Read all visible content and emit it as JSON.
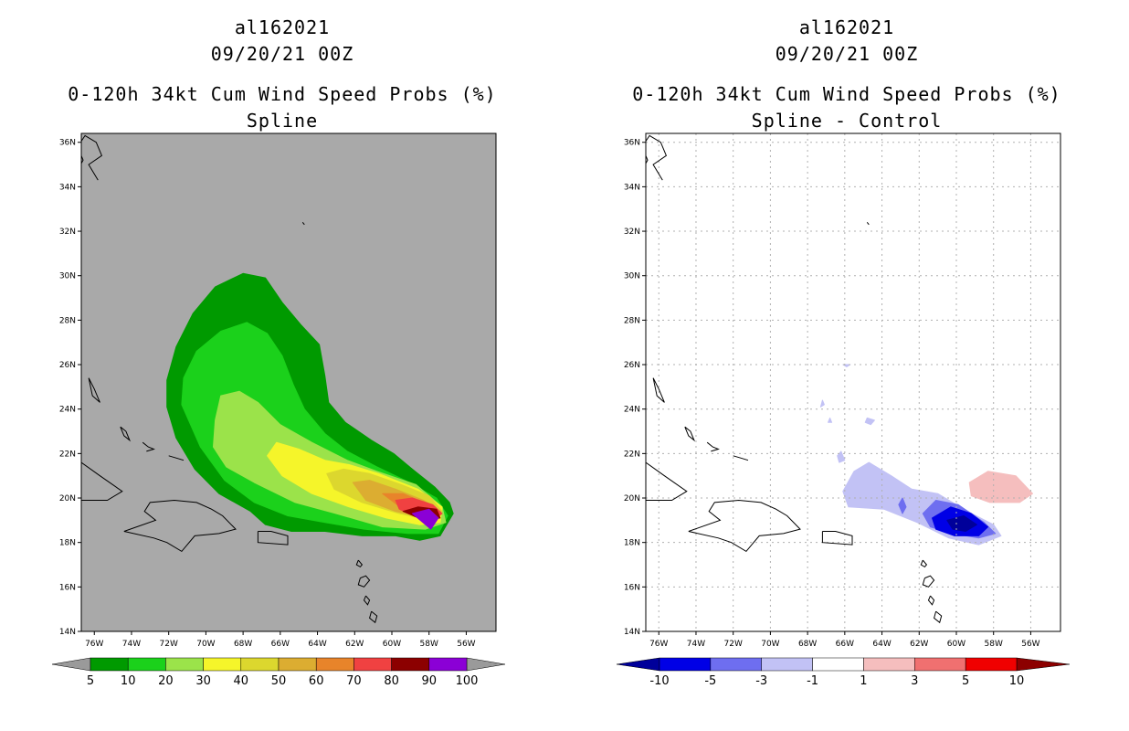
{
  "chart_data": [
    {
      "type": "heatmap",
      "id": "left",
      "title_lines": [
        "al162021",
        "09/20/21 00Z",
        "0-120h 34kt Cum Wind Speed Probs (%)",
        "Spline"
      ],
      "background": "#a9a9a9",
      "grid": false,
      "x_ticks": [
        "76W",
        "74W",
        "72W",
        "70W",
        "68W",
        "66W",
        "64W",
        "62W",
        "60W",
        "58W",
        "56W"
      ],
      "x_tick_values": [
        -76,
        -74,
        -72,
        -70,
        -68,
        -66,
        -64,
        -62,
        -60,
        -58,
        -56
      ],
      "y_ticks": [
        "14N",
        "16N",
        "18N",
        "20N",
        "22N",
        "24N",
        "26N",
        "28N",
        "30N",
        "32N",
        "34N",
        "36N"
      ],
      "y_tick_values": [
        14,
        16,
        18,
        20,
        22,
        24,
        26,
        28,
        30,
        32,
        34,
        36
      ],
      "xlim": [
        -76.7,
        -54.4
      ],
      "ylim": [
        14,
        36.4
      ],
      "colorbar": {
        "labels": [
          "5",
          "10",
          "20",
          "30",
          "40",
          "50",
          "60",
          "70",
          "80",
          "90",
          "100"
        ],
        "colors": [
          "#009a00",
          "#1bd11b",
          "#9be34a",
          "#f5f52a",
          "#dcd72e",
          "#dcad31",
          "#e8842a",
          "#f04141",
          "#8c0000",
          "#8b00d6"
        ],
        "left_arrow": "#9a9a9a",
        "right_arrow": "#9a9a9a"
      },
      "contours": [
        {
          "level": "5-10",
          "color": "#009a00",
          "points": [
            [
              -72.1,
              24.1
            ],
            [
              -72.1,
              25.3
            ],
            [
              -71.6,
              26.8
            ],
            [
              -70.7,
              28.3
            ],
            [
              -69.5,
              29.5
            ],
            [
              -68.0,
              30.1
            ],
            [
              -66.8,
              29.9
            ],
            [
              -65.9,
              28.8
            ],
            [
              -64.9,
              27.8
            ],
            [
              -63.9,
              26.9
            ],
            [
              -63.6,
              25.5
            ],
            [
              -63.4,
              24.3
            ],
            [
              -62.5,
              23.4
            ],
            [
              -61.1,
              22.6
            ],
            [
              -59.9,
              22.0
            ],
            [
              -58.9,
              21.3
            ],
            [
              -57.7,
              20.5
            ],
            [
              -56.9,
              19.8
            ],
            [
              -56.7,
              19.3
            ],
            [
              -57.4,
              18.3
            ],
            [
              -58.5,
              18.1
            ],
            [
              -59.8,
              18.3
            ],
            [
              -61.6,
              18.3
            ],
            [
              -63.6,
              18.5
            ],
            [
              -65.4,
              18.5
            ],
            [
              -66.8,
              18.8
            ],
            [
              -67.6,
              19.4
            ],
            [
              -69.3,
              20.2
            ],
            [
              -70.6,
              21.3
            ],
            [
              -71.6,
              22.7
            ]
          ]
        },
        {
          "level": "10-20",
          "color": "#1bd11b",
          "points": [
            [
              -71.3,
              24.2
            ],
            [
              -71.2,
              25.4
            ],
            [
              -70.5,
              26.6
            ],
            [
              -69.2,
              27.5
            ],
            [
              -67.8,
              27.9
            ],
            [
              -66.7,
              27.4
            ],
            [
              -65.9,
              26.4
            ],
            [
              -65.3,
              25.1
            ],
            [
              -64.7,
              24.0
            ],
            [
              -63.6,
              22.9
            ],
            [
              -62.4,
              22.1
            ],
            [
              -60.8,
              21.4
            ],
            [
              -59.3,
              20.8
            ],
            [
              -57.6,
              20.0
            ],
            [
              -57.0,
              19.2
            ],
            [
              -57.5,
              18.4
            ],
            [
              -59.1,
              18.4
            ],
            [
              -61.5,
              18.6
            ],
            [
              -63.6,
              18.9
            ],
            [
              -65.6,
              19.2
            ],
            [
              -67.4,
              19.8
            ],
            [
              -69.0,
              20.8
            ],
            [
              -70.3,
              22.3
            ]
          ]
        },
        {
          "level": "20-30",
          "color": "#9be34a",
          "points": [
            [
              -69.6,
              22.3
            ],
            [
              -69.5,
              23.5
            ],
            [
              -69.2,
              24.6
            ],
            [
              -68.2,
              24.8
            ],
            [
              -67.2,
              24.3
            ],
            [
              -66.0,
              23.3
            ],
            [
              -64.3,
              22.5
            ],
            [
              -62.4,
              21.7
            ],
            [
              -60.8,
              21.2
            ],
            [
              -58.7,
              20.6
            ],
            [
              -57.3,
              19.6
            ],
            [
              -57.1,
              18.9
            ],
            [
              -58.2,
              18.6
            ],
            [
              -60.5,
              18.7
            ],
            [
              -63.0,
              19.3
            ],
            [
              -65.2,
              19.8
            ],
            [
              -67.4,
              20.7
            ],
            [
              -68.9,
              21.4
            ]
          ]
        },
        {
          "level": "30-40",
          "color": "#f5f52a",
          "points": [
            [
              -66.7,
              21.9
            ],
            [
              -66.2,
              22.5
            ],
            [
              -65.0,
              22.2
            ],
            [
              -63.6,
              21.7
            ],
            [
              -62.3,
              21.5
            ],
            [
              -60.7,
              21.1
            ],
            [
              -58.6,
              20.4
            ],
            [
              -57.3,
              19.6
            ],
            [
              -57.4,
              18.9
            ],
            [
              -58.5,
              18.8
            ],
            [
              -60.3,
              19.1
            ],
            [
              -62.3,
              19.6
            ],
            [
              -64.3,
              20.2
            ],
            [
              -65.9,
              21.0
            ]
          ]
        },
        {
          "level": "40-50",
          "color": "#dcd72e",
          "points": [
            [
              -63.5,
              21.1
            ],
            [
              -62.6,
              21.3
            ],
            [
              -61.2,
              21.1
            ],
            [
              -59.5,
              20.6
            ],
            [
              -58.0,
              20.1
            ],
            [
              -57.3,
              19.4
            ],
            [
              -57.9,
              19.0
            ],
            [
              -59.6,
              19.3
            ],
            [
              -61.6,
              19.8
            ],
            [
              -63.1,
              20.4
            ]
          ]
        },
        {
          "level": "50-60",
          "color": "#dcad31",
          "points": [
            [
              -62.1,
              20.7
            ],
            [
              -61.2,
              20.8
            ],
            [
              -59.8,
              20.4
            ],
            [
              -58.3,
              19.9
            ],
            [
              -57.4,
              19.4
            ],
            [
              -58.1,
              19.1
            ],
            [
              -59.8,
              19.4
            ],
            [
              -61.4,
              19.9
            ]
          ]
        },
        {
          "level": "60-70",
          "color": "#e8842a",
          "points": [
            [
              -60.5,
              20.2
            ],
            [
              -59.4,
              20.2
            ],
            [
              -58.3,
              19.8
            ],
            [
              -57.4,
              19.4
            ],
            [
              -58.0,
              19.2
            ],
            [
              -59.4,
              19.5
            ]
          ]
        },
        {
          "level": "70-80",
          "color": "#f04141",
          "points": [
            [
              -59.8,
              19.9
            ],
            [
              -58.9,
              20.0
            ],
            [
              -57.8,
              19.7
            ],
            [
              -57.3,
              19.3
            ],
            [
              -57.9,
              18.9
            ],
            [
              -58.8,
              19.2
            ],
            [
              -59.6,
              19.5
            ]
          ]
        },
        {
          "level": "80-90",
          "color": "#8c0000",
          "points": [
            [
              -59.4,
              19.4
            ],
            [
              -58.6,
              19.6
            ],
            [
              -57.6,
              19.5
            ],
            [
              -57.4,
              19.1
            ],
            [
              -58.3,
              19.0
            ]
          ]
        },
        {
          "level": "90-100",
          "color": "#8b00d6",
          "points": [
            [
              -58.9,
              19.3
            ],
            [
              -58.0,
              19.5
            ],
            [
              -57.5,
              19.1
            ],
            [
              -57.9,
              18.6
            ]
          ]
        }
      ]
    },
    {
      "type": "heatmap",
      "id": "right",
      "title_lines": [
        "al162021",
        "09/20/21 00Z",
        "0-120h 34kt Cum Wind Speed Probs (%)",
        "Spline - Control"
      ],
      "background": "#ffffff",
      "grid": true,
      "x_ticks": [
        "76W",
        "74W",
        "72W",
        "70W",
        "68W",
        "66W",
        "64W",
        "62W",
        "60W",
        "58W",
        "56W"
      ],
      "x_tick_values": [
        -76,
        -74,
        -72,
        -70,
        -68,
        -66,
        -64,
        -62,
        -60,
        -58,
        -56
      ],
      "y_ticks": [
        "14N",
        "16N",
        "18N",
        "20N",
        "22N",
        "24N",
        "26N",
        "28N",
        "30N",
        "32N",
        "34N",
        "36N"
      ],
      "y_tick_values": [
        14,
        16,
        18,
        20,
        22,
        24,
        26,
        28,
        30,
        32,
        34,
        36
      ],
      "xlim": [
        -76.7,
        -54.4
      ],
      "ylim": [
        14,
        36.4
      ],
      "colorbar": {
        "labels": [
          "-10",
          "-5",
          "-3",
          "-1",
          "1",
          "3",
          "5",
          "10"
        ],
        "colors": [
          "#0000e6",
          "#6e6ef0",
          "#c2c2f5",
          "#ffffff",
          "#f5bebe",
          "#f07070",
          "#f00000"
        ],
        "left_arrow": "#00009a",
        "right_arrow": "#8c0000"
      },
      "contours": [
        {
          "level": "-3 to -1",
          "color": "#c2c2f5",
          "points": [
            [
              -65.5,
              21.2
            ],
            [
              -64.7,
              21.6
            ],
            [
              -63.5,
              21.0
            ],
            [
              -62.4,
              20.4
            ],
            [
              -61.0,
              20.2
            ],
            [
              -59.4,
              19.4
            ],
            [
              -58.0,
              18.8
            ],
            [
              -57.6,
              18.3
            ],
            [
              -58.8,
              17.9
            ],
            [
              -60.4,
              18.2
            ],
            [
              -62.1,
              18.9
            ],
            [
              -63.9,
              19.5
            ],
            [
              -65.8,
              19.6
            ],
            [
              -66.1,
              20.3
            ]
          ]
        },
        {
          "level": "-3 to -1",
          "color": "#c2c2f5",
          "points": [
            [
              -66.2,
              22.1
            ],
            [
              -66.0,
              21.7
            ],
            [
              -66.3,
              21.6
            ],
            [
              -66.4,
              21.9
            ]
          ]
        },
        {
          "level": "-3 to -1",
          "color": "#c2c2f5",
          "points": [
            [
              -67.2,
              24.4
            ],
            [
              -67.1,
              24.2
            ],
            [
              -67.3,
              24.1
            ]
          ]
        },
        {
          "level": "-3 to -1",
          "color": "#c2c2f5",
          "points": [
            [
              -64.8,
              23.6
            ],
            [
              -64.4,
              23.5
            ],
            [
              -64.6,
              23.3
            ],
            [
              -64.9,
              23.4
            ]
          ]
        },
        {
          "level": "-3 to -1",
          "color": "#c2c2f5",
          "points": [
            [
              -66.8,
              23.6
            ],
            [
              -66.7,
              23.4
            ],
            [
              -66.9,
              23.4
            ]
          ]
        },
        {
          "level": "-3 to -1",
          "color": "#c2c2f5",
          "points": [
            [
              -66.1,
              26.0
            ],
            [
              -65.7,
              26.0
            ],
            [
              -65.9,
              25.9
            ]
          ]
        },
        {
          "level": "-5 to -3",
          "color": "#6e6ef0",
          "points": [
            [
              -61.8,
              19.3
            ],
            [
              -61.1,
              19.9
            ],
            [
              -59.9,
              19.7
            ],
            [
              -58.5,
              18.9
            ],
            [
              -57.9,
              18.4
            ],
            [
              -58.8,
              18.2
            ],
            [
              -60.2,
              18.4
            ],
            [
              -61.4,
              18.7
            ]
          ]
        },
        {
          "level": "-5 to -3",
          "color": "#6e6ef0",
          "points": [
            [
              -62.9,
              20.0
            ],
            [
              -62.7,
              19.6
            ],
            [
              -62.9,
              19.3
            ],
            [
              -63.1,
              19.7
            ]
          ]
        },
        {
          "level": "-10 to -5",
          "color": "#0000e6",
          "points": [
            [
              -61.3,
              19.1
            ],
            [
              -60.3,
              19.6
            ],
            [
              -59.2,
              19.3
            ],
            [
              -58.3,
              18.7
            ],
            [
              -58.8,
              18.3
            ],
            [
              -60.1,
              18.3
            ],
            [
              -61.1,
              18.6
            ]
          ]
        },
        {
          "level": "< -10",
          "color": "#00009a",
          "points": [
            [
              -60.5,
              19.0
            ],
            [
              -59.6,
              19.2
            ],
            [
              -58.9,
              18.8
            ],
            [
              -59.5,
              18.5
            ],
            [
              -60.2,
              18.6
            ]
          ]
        },
        {
          "level": "1 to 3",
          "color": "#f5bebe",
          "points": [
            [
              -59.3,
              20.7
            ],
            [
              -58.3,
              21.2
            ],
            [
              -56.8,
              21.0
            ],
            [
              -55.9,
              20.2
            ],
            [
              -56.6,
              19.8
            ],
            [
              -58.2,
              19.8
            ],
            [
              -59.2,
              20.1
            ]
          ]
        }
      ]
    }
  ]
}
